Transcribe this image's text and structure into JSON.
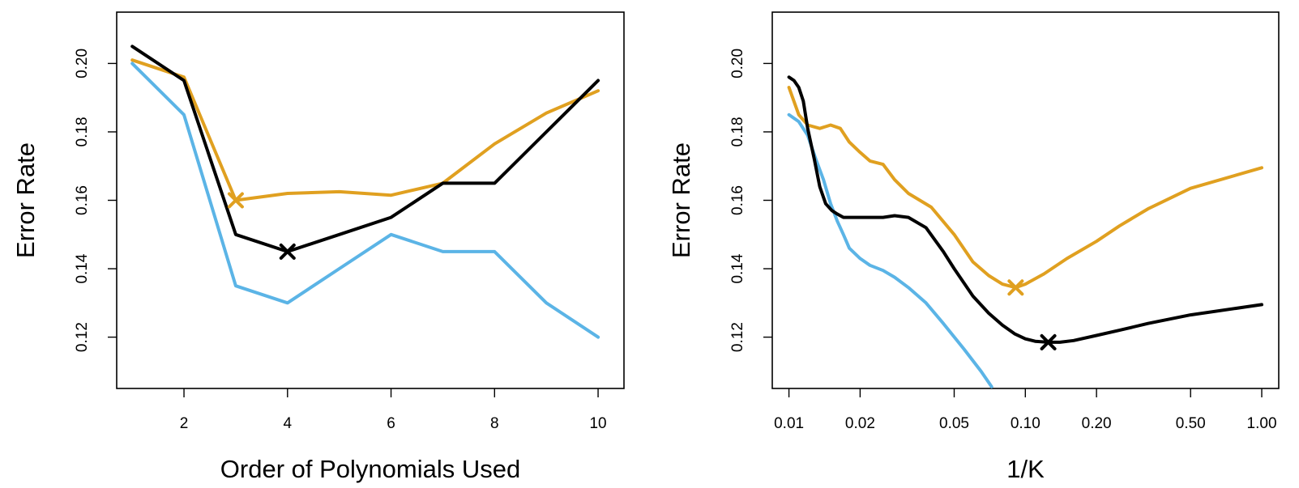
{
  "colors": {
    "orange": "#e0a020",
    "blue": "#5bb4e6",
    "black": "#000000"
  },
  "chart_data": [
    {
      "type": "line",
      "xlabel": "Order of Polynomials Used",
      "ylabel": "Error Rate",
      "xscale": "linear",
      "xlim": [
        0.7,
        10.5
      ],
      "ylim": [
        0.105,
        0.215
      ],
      "xticks": [
        2,
        4,
        6,
        8,
        10
      ],
      "xtick_labels": [
        "2",
        "4",
        "6",
        "8",
        "10"
      ],
      "yticks": [
        0.12,
        0.14,
        0.16,
        0.18,
        0.2
      ],
      "ytick_labels": [
        "0.12",
        "0.14",
        "0.16",
        "0.18",
        "0.20"
      ],
      "series": [
        {
          "name": "orange",
          "color": "#e0a020",
          "x": [
            1,
            2,
            3,
            4,
            5,
            6,
            7,
            8,
            9,
            10
          ],
          "y": [
            0.201,
            0.196,
            0.16,
            0.162,
            0.1625,
            0.1615,
            0.165,
            0.1765,
            0.1855,
            0.192
          ]
        },
        {
          "name": "blue",
          "color": "#5bb4e6",
          "x": [
            1,
            2,
            3,
            4,
            5,
            6,
            7,
            8,
            9,
            10
          ],
          "y": [
            0.2,
            0.185,
            0.135,
            0.13,
            0.14,
            0.15,
            0.145,
            0.145,
            0.13,
            0.12
          ]
        },
        {
          "name": "black",
          "color": "#000000",
          "x": [
            1,
            2,
            3,
            4,
            5,
            6,
            7,
            8,
            9,
            10
          ],
          "y": [
            0.205,
            0.195,
            0.15,
            0.145,
            0.15,
            0.155,
            0.165,
            0.165,
            0.18,
            0.195
          ]
        }
      ],
      "markers": [
        {
          "name": "orange-min",
          "color": "#e0a020",
          "x": 3,
          "y": 0.16
        },
        {
          "name": "black-min",
          "color": "#000000",
          "x": 4,
          "y": 0.145
        }
      ]
    },
    {
      "type": "line",
      "xlabel": "1/K",
      "ylabel": "Error Rate",
      "xscale": "log",
      "xlim": [
        0.0085,
        1.18
      ],
      "ylim": [
        0.105,
        0.215
      ],
      "xticks": [
        0.01,
        0.02,
        0.05,
        0.1,
        0.2,
        0.5,
        1.0
      ],
      "xtick_labels": [
        "0.01",
        "0.02",
        "0.05",
        "0.10",
        "0.20",
        "0.50",
        "1.00"
      ],
      "yticks": [
        0.12,
        0.14,
        0.16,
        0.18,
        0.2
      ],
      "ytick_labels": [
        "0.12",
        "0.14",
        "0.16",
        "0.18",
        "0.20"
      ],
      "series": [
        {
          "name": "orange",
          "color": "#e0a020",
          "x": [
            0.01,
            0.011,
            0.012,
            0.0135,
            0.015,
            0.0165,
            0.018,
            0.02,
            0.022,
            0.025,
            0.028,
            0.032,
            0.04,
            0.05,
            0.06,
            0.07,
            0.08,
            0.091,
            0.1,
            0.12,
            0.15,
            0.2,
            0.25,
            0.33,
            0.5,
            1.0
          ],
          "y": [
            0.193,
            0.185,
            0.182,
            0.181,
            0.182,
            0.181,
            0.177,
            0.174,
            0.1715,
            0.1705,
            0.166,
            0.162,
            0.158,
            0.15,
            0.142,
            0.138,
            0.1355,
            0.1345,
            0.1355,
            0.1385,
            0.143,
            0.148,
            0.1525,
            0.1575,
            0.1635,
            0.1695
          ]
        },
        {
          "name": "blue",
          "color": "#5bb4e6",
          "x": [
            0.01,
            0.011,
            0.012,
            0.013,
            0.014,
            0.015,
            0.016,
            0.017,
            0.018,
            0.02,
            0.022,
            0.025,
            0.028,
            0.032,
            0.038,
            0.045,
            0.055,
            0.065,
            0.072
          ],
          "y": [
            0.185,
            0.183,
            0.179,
            0.172,
            0.166,
            0.159,
            0.154,
            0.15,
            0.146,
            0.143,
            0.141,
            0.1395,
            0.1375,
            0.1345,
            0.13,
            0.124,
            0.1165,
            0.11,
            0.1055
          ]
        },
        {
          "name": "black",
          "color": "#000000",
          "x": [
            0.01,
            0.0105,
            0.011,
            0.0115,
            0.012,
            0.0128,
            0.0135,
            0.0143,
            0.0152,
            0.016,
            0.017,
            0.0183,
            0.02,
            0.022,
            0.025,
            0.028,
            0.032,
            0.038,
            0.045,
            0.05,
            0.06,
            0.07,
            0.08,
            0.09,
            0.1,
            0.11,
            0.125,
            0.14,
            0.16,
            0.2,
            0.25,
            0.33,
            0.5,
            1.0
          ],
          "y": [
            0.196,
            0.195,
            0.193,
            0.189,
            0.181,
            0.172,
            0.164,
            0.159,
            0.157,
            0.156,
            0.155,
            0.155,
            0.155,
            0.155,
            0.155,
            0.1555,
            0.155,
            0.152,
            0.145,
            0.14,
            0.132,
            0.127,
            0.1235,
            0.121,
            0.1195,
            0.1188,
            0.1185,
            0.1185,
            0.119,
            0.1205,
            0.122,
            0.124,
            0.1265,
            0.1295
          ]
        }
      ],
      "markers": [
        {
          "name": "orange-min",
          "color": "#e0a020",
          "x": 0.091,
          "y": 0.1345
        },
        {
          "name": "black-min",
          "color": "#000000",
          "x": 0.125,
          "y": 0.1185
        }
      ]
    }
  ]
}
